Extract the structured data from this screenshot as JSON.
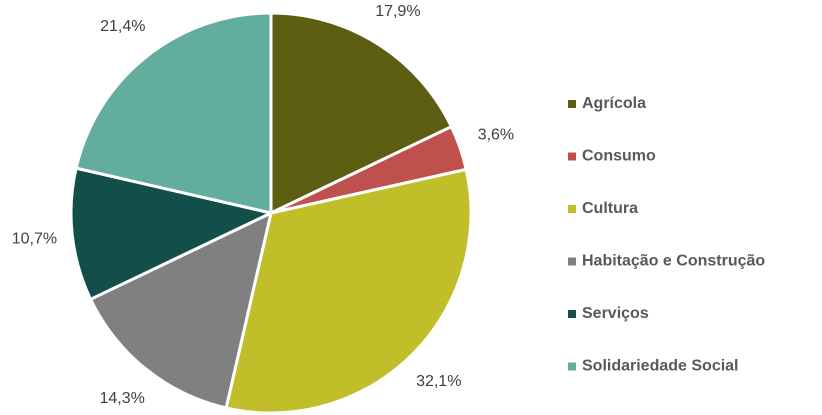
{
  "chart_data": {
    "type": "pie",
    "categories": [
      "Agrícola",
      "Consumo",
      "Cultura",
      "Habitação e Construção",
      "Serviços",
      "Solidariedade Social"
    ],
    "values": [
      17.9,
      3.6,
      32.1,
      14.3,
      10.7,
      21.4
    ],
    "value_labels": [
      "17,9%",
      "3,6%",
      "32,1%",
      "14,3%",
      "10,7%",
      "21,4%"
    ],
    "colors": [
      "#5e5e12",
      "#c0504d",
      "#c0bf29",
      "#808080",
      "#134f4a",
      "#63ad9f"
    ]
  }
}
